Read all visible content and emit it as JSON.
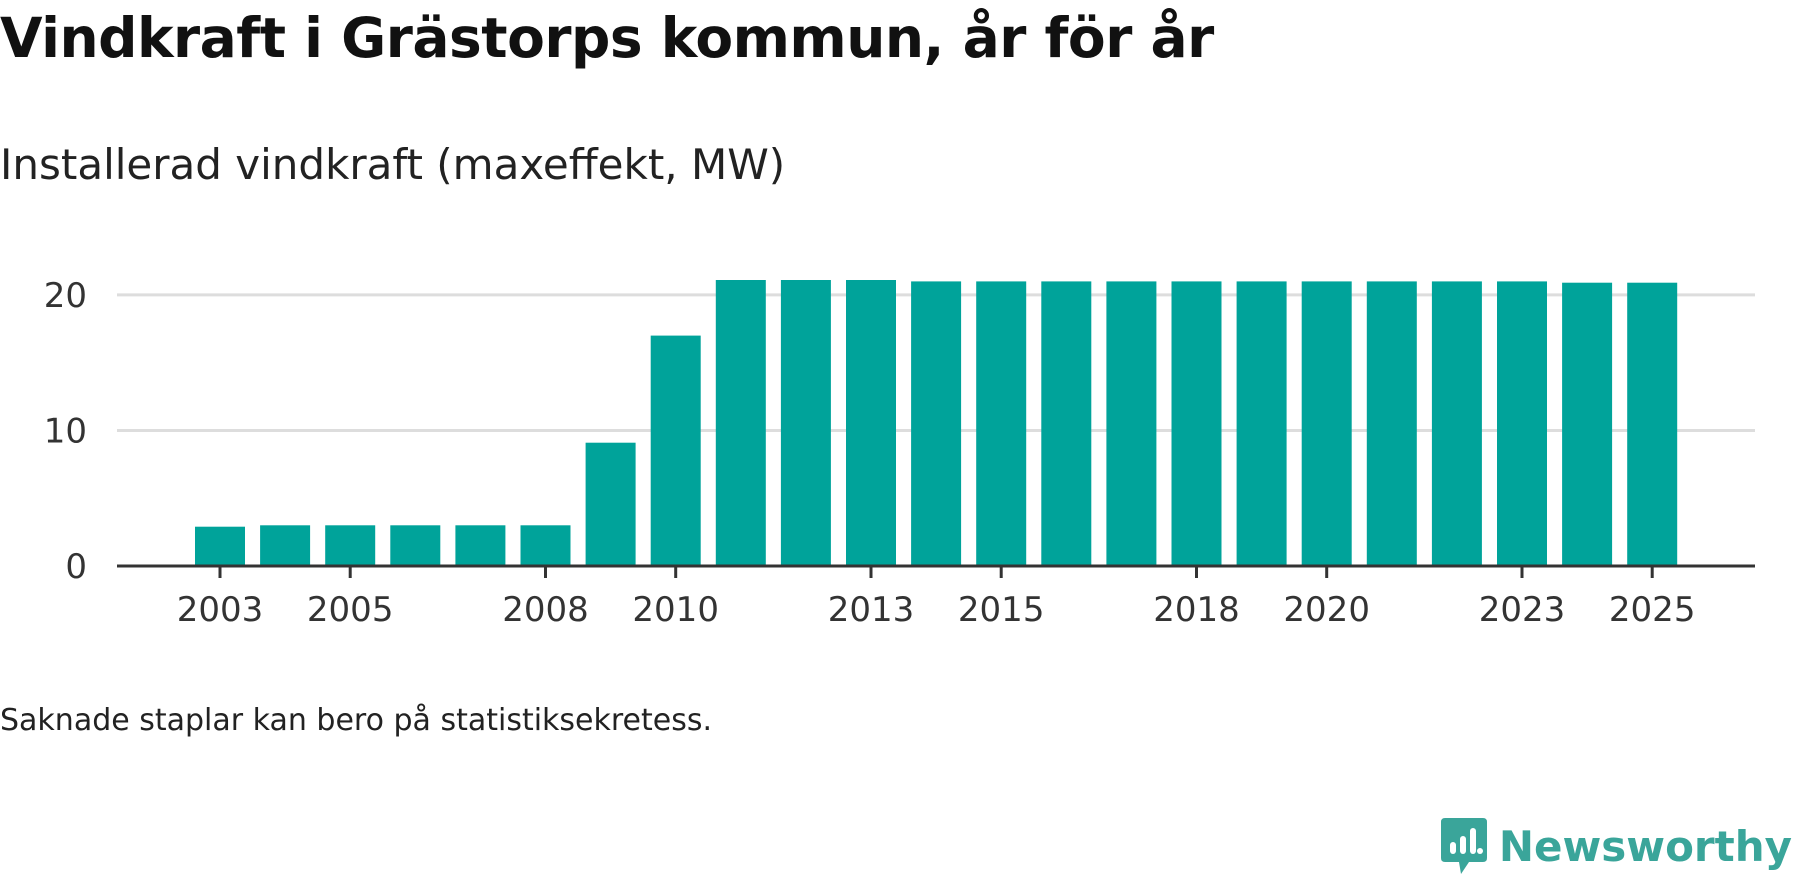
{
  "title": "Vindkraft i Grästorps kommun, år för år",
  "subtitle": "Installerad vindkraft (maxeffekt, MW)",
  "note": "Saknade staplar kan bero på statistiksekretess.",
  "brand": {
    "name": "Newsworthy",
    "icon": "newsworthy-logo-icon",
    "color": "#3aa59a"
  },
  "colors": {
    "bar": "#00a39a",
    "grid": "#dddddd",
    "axis": "#333333",
    "tick_text": "#333333"
  },
  "chart_data": {
    "type": "bar",
    "title": "Vindkraft i Grästorps kommun, år för år",
    "subtitle": "Installerad vindkraft (maxeffekt, MW)",
    "xlabel": "",
    "ylabel": "",
    "categories": [
      "2003",
      "2004",
      "2005",
      "2006",
      "2007",
      "2008",
      "2009",
      "2010",
      "2011",
      "2012",
      "2013",
      "2014",
      "2015",
      "2016",
      "2017",
      "2018",
      "2019",
      "2020",
      "2021",
      "2022",
      "2023",
      "2024",
      "2025"
    ],
    "values": [
      2.9,
      3.0,
      3.0,
      3.0,
      3.0,
      3.0,
      9.1,
      17.0,
      21.1,
      21.1,
      21.1,
      21.0,
      21.0,
      21.0,
      21.0,
      21.0,
      21.0,
      21.0,
      21.0,
      21.0,
      21.0,
      20.9,
      20.9
    ],
    "x_tick_labels": [
      "2003",
      "2005",
      "2008",
      "2010",
      "2013",
      "2015",
      "2018",
      "2020",
      "2023",
      "2025"
    ],
    "y_ticks": [
      0,
      10,
      20
    ],
    "y_tick_labels": [
      "0",
      "10",
      "20"
    ],
    "ylim": [
      0,
      21.1
    ],
    "grid": true,
    "legend": "none"
  }
}
